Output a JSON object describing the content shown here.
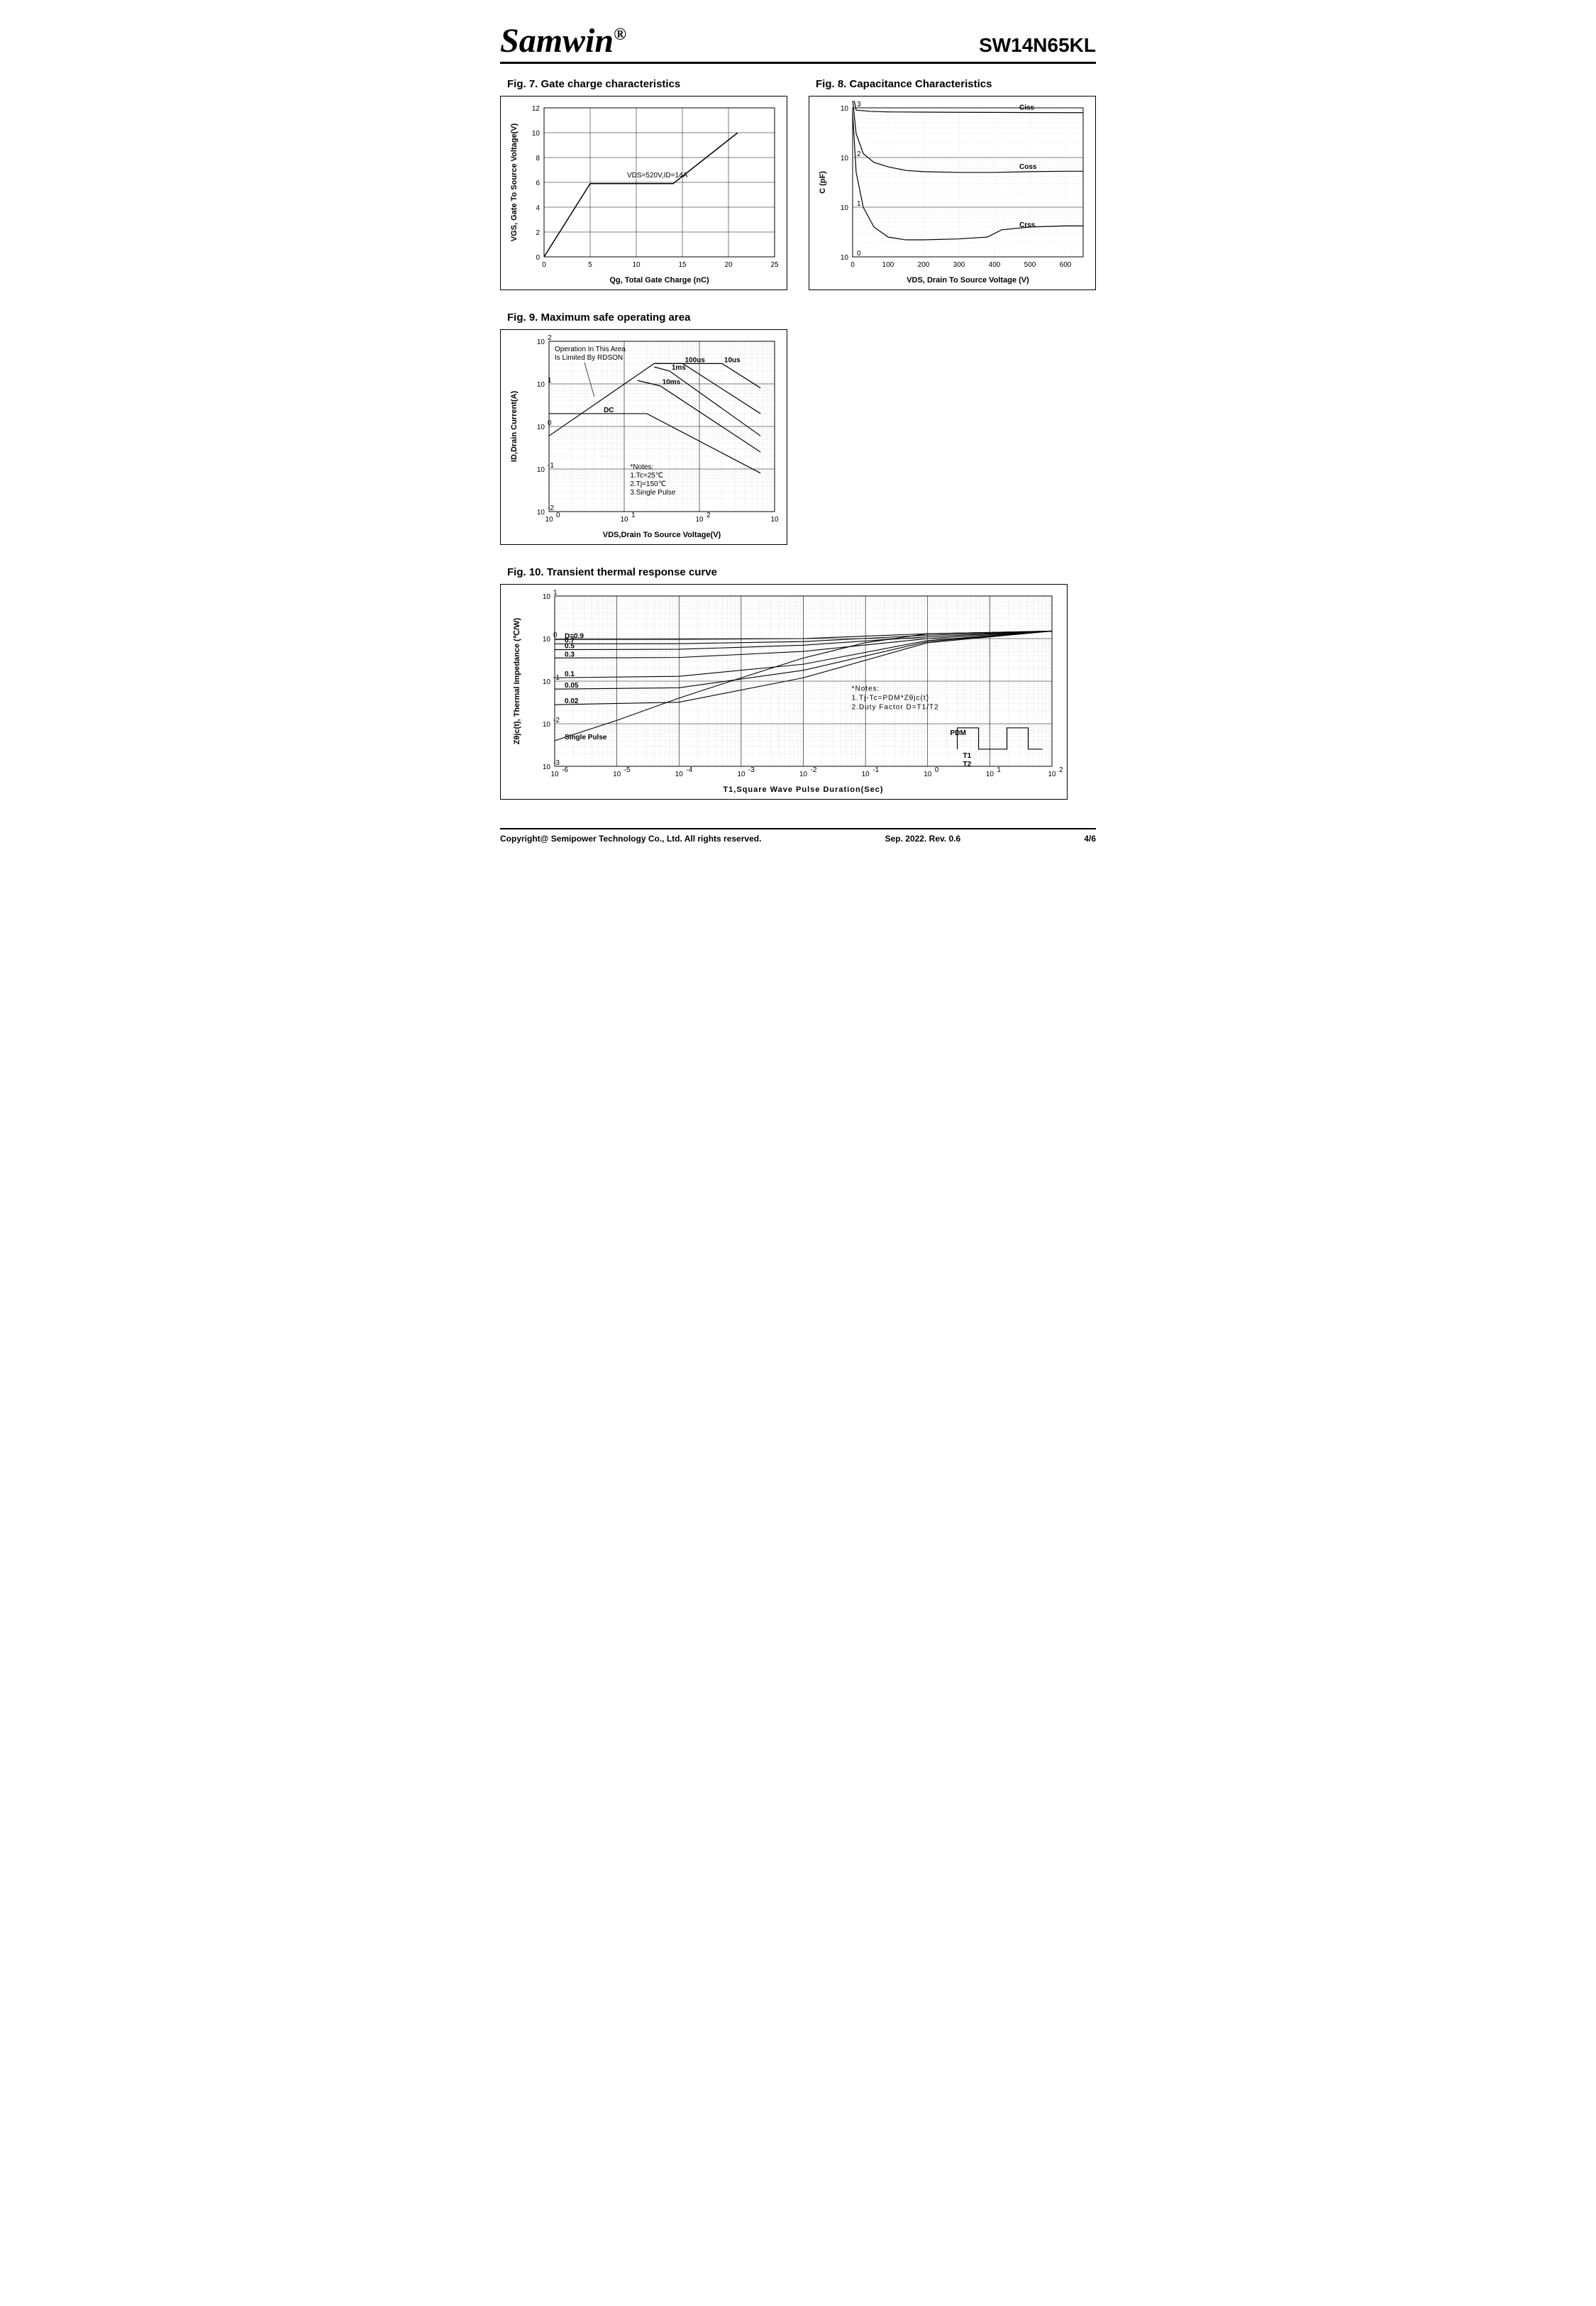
{
  "header": {
    "logo": "Samwin",
    "reg": "®",
    "partnum": "SW14N65KL"
  },
  "footer": {
    "copyright": "Copyright@ Semipower Technology Co., Ltd. All rights reserved.",
    "date": "Sep. 2022. Rev. 0.6",
    "page": "4/6"
  },
  "fig7": {
    "title": "Fig. 7. Gate charge characteristics",
    "type": "line",
    "xlabel": "Qg, Total Gate Charge (nC)",
    "ylabel": "VGS, Gate To Source Voltage(V)",
    "xlim": [
      0,
      25
    ],
    "xtick_step": 5,
    "ylim": [
      0,
      12
    ],
    "ytick_step": 2,
    "annotation": "VDS=520V,ID=14A",
    "line_color": "#000000",
    "line_width": 1.5,
    "background_color": "#ffffff",
    "grid_color": "#e0e0e0",
    "points": [
      [
        0,
        0
      ],
      [
        5,
        5.9
      ],
      [
        14,
        5.9
      ],
      [
        21,
        10
      ]
    ]
  },
  "fig8": {
    "title": "Fig. 8. Capacitance Characteristics",
    "type": "line-logy",
    "xlabel": "VDS, Drain To Source Voltage (V)",
    "ylabel": "C (pF)",
    "xlim": [
      0,
      650
    ],
    "xtick_step": 100,
    "ylim_exp": [
      0,
      3
    ],
    "ytick_exp": [
      0,
      1,
      2,
      3
    ],
    "line_color": "#000000",
    "line_width": 1.2,
    "grid_color": "#aaaaaa",
    "series": {
      "Ciss": {
        "label": "Ciss",
        "points": [
          [
            0,
            2000
          ],
          [
            10,
            900
          ],
          [
            50,
            850
          ],
          [
            100,
            830
          ],
          [
            200,
            820
          ],
          [
            300,
            815
          ],
          [
            400,
            810
          ],
          [
            500,
            805
          ],
          [
            600,
            800
          ],
          [
            650,
            800
          ]
        ]
      },
      "Coss": {
        "label": "Coss",
        "points": [
          [
            0,
            1500
          ],
          [
            10,
            300
          ],
          [
            30,
            120
          ],
          [
            60,
            80
          ],
          [
            100,
            65
          ],
          [
            150,
            55
          ],
          [
            200,
            52
          ],
          [
            300,
            50
          ],
          [
            400,
            50
          ],
          [
            500,
            52
          ],
          [
            600,
            53
          ],
          [
            650,
            53
          ]
        ]
      },
      "Crss": {
        "label": "Crss",
        "points": [
          [
            0,
            800
          ],
          [
            10,
            50
          ],
          [
            30,
            10
          ],
          [
            60,
            4
          ],
          [
            100,
            2.5
          ],
          [
            150,
            2.2
          ],
          [
            200,
            2.2
          ],
          [
            300,
            2.3
          ],
          [
            380,
            2.5
          ],
          [
            420,
            3.5
          ],
          [
            500,
            4
          ],
          [
            600,
            4.2
          ],
          [
            650,
            4.2
          ]
        ]
      }
    }
  },
  "fig9": {
    "title": "Fig. 9. Maximum safe operating area",
    "type": "loglog",
    "xlabel": "VDS,Drain To Source Voltage(V)",
    "ylabel": "ID,Drain Current(A)",
    "xlim_exp": [
      0,
      3
    ],
    "ylim_exp": [
      -2,
      2
    ],
    "annot1": "Operation In This Area\nIs Limited By RDSON",
    "notes": "*Notes:\n1.Tc=25℃\n2.Tj=150℃\n3.Single Pulse",
    "line_color": "#000000",
    "grid_color": "#888888",
    "zones": {
      "rdson": [
        [
          1,
          0.6
        ],
        [
          25,
          30
        ]
      ],
      "10us": {
        "label": "10us",
        "points": [
          [
            25,
            30
          ],
          [
            200,
            30
          ],
          [
            650,
            8
          ]
        ]
      },
      "100us": {
        "label": "100us",
        "points": [
          [
            25,
            30
          ],
          [
            60,
            30
          ],
          [
            650,
            2
          ]
        ]
      },
      "1ms": {
        "label": "1ms",
        "points": [
          [
            25,
            25
          ],
          [
            40,
            20
          ],
          [
            650,
            0.6
          ]
        ]
      },
      "10ms": {
        "label": "10ms",
        "points": [
          [
            15,
            12
          ],
          [
            30,
            9
          ],
          [
            650,
            0.25
          ]
        ]
      },
      "DC": {
        "label": "DC",
        "points": [
          [
            1,
            2
          ],
          [
            5,
            2
          ],
          [
            20,
            2
          ],
          [
            650,
            0.08
          ]
        ]
      }
    }
  },
  "fig10": {
    "title": "Fig. 10. Transient thermal response curve",
    "type": "loglog",
    "xlabel": "T1,Square Wave Pulse Duration(Sec)",
    "ylabel": "Zθjc(t), Thermal Impedance (℃/W)",
    "xlim_exp": [
      -6,
      2
    ],
    "ylim_exp": [
      -3,
      1
    ],
    "notes": "*Notes:\n1.Tj-Tc=PDM*Zθjc(t)\n2.Duty Factor D=T1/T2",
    "pdm_label": "PDM",
    "t1_label": "T1",
    "t2_label": "T2",
    "line_color": "#000000",
    "grid_color": "#888888",
    "series": {
      "D09": {
        "label": "D=0.9",
        "points": [
          [
            1e-06,
            0.95
          ],
          [
            0.0001,
            0.96
          ],
          [
            0.01,
            1
          ],
          [
            1,
            1.3
          ],
          [
            100,
            1.5
          ]
        ]
      },
      "D07": {
        "label": "0.7",
        "points": [
          [
            1e-06,
            0.75
          ],
          [
            0.0001,
            0.76
          ],
          [
            0.01,
            0.85
          ],
          [
            1,
            1.2
          ],
          [
            100,
            1.5
          ]
        ]
      },
      "D05": {
        "label": "0.5",
        "points": [
          [
            1e-06,
            0.55
          ],
          [
            0.0001,
            0.56
          ],
          [
            0.01,
            0.7
          ],
          [
            1,
            1.1
          ],
          [
            100,
            1.5
          ]
        ]
      },
      "D03": {
        "label": "0.3",
        "points": [
          [
            1e-06,
            0.35
          ],
          [
            0.0001,
            0.36
          ],
          [
            0.01,
            0.5
          ],
          [
            1,
            1.0
          ],
          [
            100,
            1.5
          ]
        ]
      },
      "D01": {
        "label": "0.1",
        "points": [
          [
            1e-06,
            0.12
          ],
          [
            0.0001,
            0.13
          ],
          [
            0.01,
            0.25
          ],
          [
            1,
            0.9
          ],
          [
            100,
            1.5
          ]
        ]
      },
      "D005": {
        "label": "0.05",
        "points": [
          [
            1e-06,
            0.065
          ],
          [
            0.0001,
            0.07
          ],
          [
            0.01,
            0.18
          ],
          [
            1,
            0.85
          ],
          [
            100,
            1.5
          ]
        ]
      },
      "D002": {
        "label": "0.02",
        "points": [
          [
            1e-06,
            0.028
          ],
          [
            0.0001,
            0.032
          ],
          [
            0.01,
            0.12
          ],
          [
            1,
            0.8
          ],
          [
            100,
            1.5
          ]
        ]
      },
      "SP": {
        "label": "Single Pulse",
        "points": [
          [
            1e-06,
            0.004
          ],
          [
            1e-05,
            0.012
          ],
          [
            0.0001,
            0.04
          ],
          [
            0.001,
            0.12
          ],
          [
            0.01,
            0.35
          ],
          [
            0.1,
            0.8
          ],
          [
            1,
            1.3
          ],
          [
            100,
            1.5
          ]
        ]
      }
    }
  }
}
